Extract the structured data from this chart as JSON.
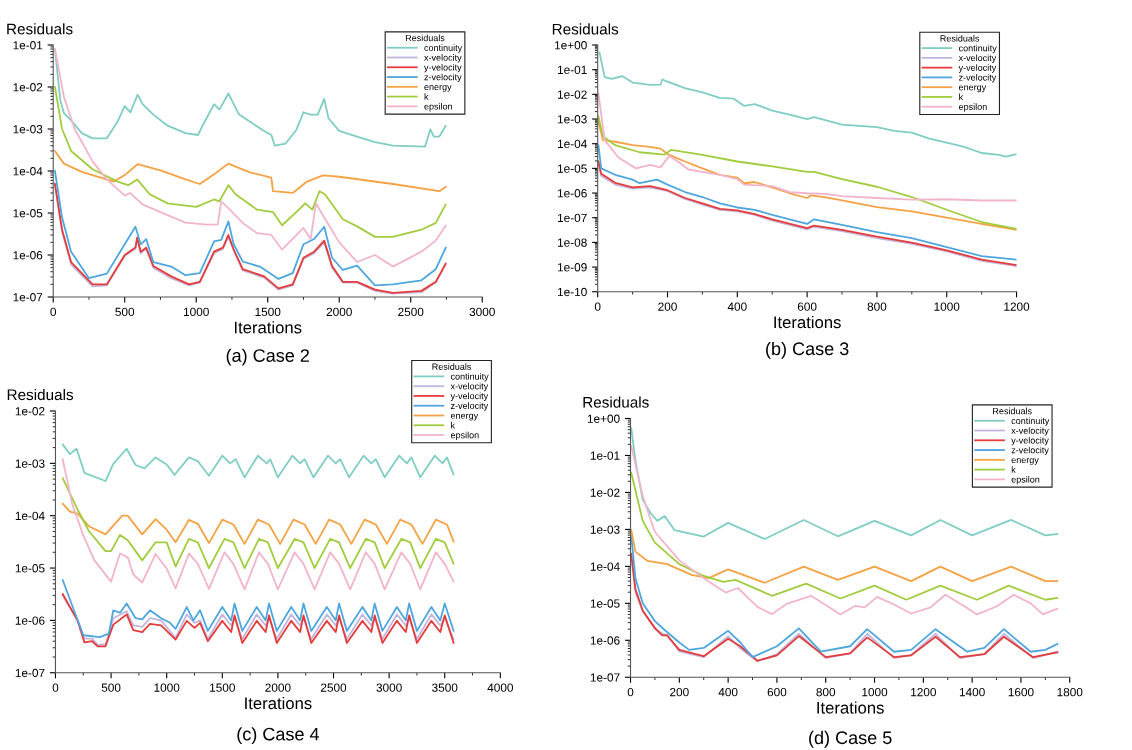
{
  "chart_data": [
    {
      "type": "line",
      "title": "(a) Case 2",
      "xlabel": "Iterations",
      "ylabel": "Residuals",
      "legend_title": "Residuals",
      "legend": "top right",
      "log": true,
      "xlim": [
        0,
        3000
      ],
      "xticks": [
        0,
        500,
        1000,
        1500,
        2000,
        2500,
        3000
      ],
      "ylim": [
        1e-07,
        0.1
      ],
      "yticks": [
        {
          "value": 1e-07,
          "label": "1e-07"
        },
        {
          "value": 1e-06,
          "label": "1e-06"
        },
        {
          "value": 1e-05,
          "label": "1e-05"
        },
        {
          "value": 0.0001,
          "label": "1e-04"
        },
        {
          "value": 0.001,
          "label": "1e-03"
        },
        {
          "value": 0.01,
          "label": "1e-02"
        },
        {
          "value": 0.1,
          "label": "1e-01"
        }
      ],
      "series": [
        {
          "name": "continuity",
          "color": "#7fcdc4",
          "x": [
            12,
            50,
            75,
            125,
            200,
            275,
            375,
            450,
            500,
            540,
            590,
            625,
            700,
            800,
            925,
            1012,
            1050,
            1125,
            1162,
            1225,
            1262,
            1300,
            1375,
            1475,
            1525,
            1550,
            1625,
            1700,
            1750,
            1800,
            1850,
            1895,
            1925,
            2000,
            2125,
            2250,
            2375,
            2600,
            2637,
            2662,
            2700,
            2745
          ],
          "values": [
            0.08,
            0.0048,
            0.0024,
            0.0016,
            0.0008,
            0.0006,
            0.0006,
            0.0015,
            0.0035,
            0.0025,
            0.0066,
            0.0039,
            0.0022,
            0.0012,
            0.0008,
            0.00072,
            0.0013,
            0.0039,
            0.0029,
            0.007,
            0.0039,
            0.0022,
            0.0015,
            0.0009,
            0.00072,
            0.0004,
            0.00045,
            0.00095,
            0.0025,
            0.0022,
            0.0022,
            0.0052,
            0.0018,
            0.0009,
            0.00066,
            0.00049,
            0.0004,
            0.00038,
            0.00098,
            0.00066,
            0.00066,
            0.0012
          ]
        },
        {
          "name": "x-velocity",
          "color": "#c3b6de",
          "x": [
            12,
            62,
            125,
            275,
            375,
            500,
            575,
            587,
            612,
            650,
            700,
            825,
            950,
            1025,
            1125,
            1187,
            1225,
            1262,
            1325,
            1475,
            1575,
            1675,
            1750,
            1825,
            1895,
            1950,
            2025,
            2125,
            2250,
            2375,
            2575,
            2675,
            2745
          ],
          "values": [
            4.5e-05,
            3.6e-06,
            6e-07,
            1.8e-07,
            1.9e-07,
            9.5e-07,
            1.4e-06,
            2.4e-06,
            1.1e-06,
            1.4e-06,
            5e-07,
            2.8e-07,
            1.9e-07,
            2.2e-07,
            1.1e-06,
            1.4e-06,
            2.7e-06,
            1.3e-06,
            4.3e-07,
            2.9e-07,
            1.5e-07,
            1.9e-07,
            8e-07,
            1.1e-06,
            2e-06,
            5e-07,
            2.2e-07,
            2.2e-07,
            1.4e-07,
            1.2e-07,
            1.3e-07,
            2.2e-07,
            6e-07
          ]
        },
        {
          "name": "y-velocity",
          "color": "#e63b3b",
          "x": [
            12,
            62,
            125,
            275,
            375,
            500,
            575,
            587,
            612,
            650,
            700,
            825,
            950,
            1025,
            1125,
            1187,
            1225,
            1262,
            1325,
            1475,
            1575,
            1675,
            1750,
            1825,
            1895,
            1950,
            2025,
            2125,
            2250,
            2375,
            2575,
            2675,
            2745
          ],
          "values": [
            5e-05,
            4e-06,
            6.8e-07,
            2e-07,
            2e-07,
            1e-06,
            1.5e-06,
            2.6e-06,
            1.2e-06,
            1.5e-06,
            5.5e-07,
            3.1e-07,
            2e-07,
            2.3e-07,
            1.2e-06,
            1.5e-06,
            3e-06,
            1.35e-06,
            4.6e-07,
            3.1e-07,
            1.6e-07,
            2e-07,
            8.6e-07,
            1.2e-06,
            2.2e-06,
            5.5e-07,
            2.3e-07,
            2.3e-07,
            1.5e-07,
            1.25e-07,
            1.4e-07,
            2.3e-07,
            6.3e-07
          ]
        },
        {
          "name": "z-velocity",
          "color": "#4da6de",
          "x": [
            12,
            62,
            125,
            250,
            375,
            500,
            575,
            612,
            650,
            700,
            825,
            925,
            1025,
            1125,
            1175,
            1225,
            1262,
            1325,
            1450,
            1575,
            1675,
            1750,
            1825,
            1895,
            1950,
            2025,
            2125,
            2250,
            2375,
            2575,
            2675,
            2745
          ],
          "values": [
            0.0001,
            7.8e-06,
            1.2e-06,
            2.8e-07,
            3.6e-07,
            1.8e-06,
            4.7e-06,
            1.8e-06,
            2.4e-06,
            6.8e-07,
            5.3e-07,
            3.3e-07,
            3.7e-07,
            2.1e-06,
            2.3e-06,
            6.3e-06,
            1.8e-06,
            7e-07,
            5.2e-07,
            2.7e-07,
            3.7e-07,
            1.8e-06,
            2.4e-06,
            4.7e-06,
            8.6e-07,
            4.4e-07,
            5.6e-07,
            1.9e-07,
            2e-07,
            2.5e-07,
            4.6e-07,
            1.5e-06
          ]
        },
        {
          "name": "energy",
          "color": "#f4a244",
          "x": [
            12,
            75,
            200,
            425,
            500,
            590,
            750,
            925,
            1025,
            1125,
            1225,
            1375,
            1525,
            1537,
            1675,
            1775,
            1887,
            2000,
            2375,
            2700,
            2745
          ],
          "values": [
            0.0003,
            0.00015,
            9.5e-05,
            5.6e-05,
            8e-05,
            0.000145,
            0.000103,
            6.3e-05,
            4.9e-05,
            8.4e-05,
            0.00015,
            9.3e-05,
            7e-05,
            3.3e-05,
            3e-05,
            5.6e-05,
            7.9e-05,
            7.3e-05,
            4.9e-05,
            3.3e-05,
            4.2e-05
          ]
        },
        {
          "name": "k",
          "color": "#a0cc3e",
          "x": [
            12,
            62,
            125,
            275,
            450,
            525,
            587,
            675,
            800,
            1000,
            1125,
            1162,
            1225,
            1275,
            1425,
            1537,
            1600,
            1700,
            1762,
            1812,
            1862,
            1900,
            2025,
            2125,
            2250,
            2375,
            2575,
            2675,
            2745
          ],
          "values": [
            0.01,
            0.001,
            0.0003,
            0.00011,
            5.6e-05,
            4.6e-05,
            6.3e-05,
            2.8e-05,
            1.7e-05,
            1.4e-05,
            2.1e-05,
            1.9e-05,
            4.6e-05,
            2.8e-05,
            1.2e-05,
            1.05e-05,
            5.1e-06,
            1.05e-05,
            1.7e-05,
            1.2e-05,
            3.3e-05,
            2.8e-05,
            7.1e-06,
            4.8e-06,
            2.7e-06,
            2.7e-06,
            4e-06,
            5.8e-06,
            1.6e-05
          ]
        },
        {
          "name": "epsilon",
          "color": "#f2b4cb",
          "x": [
            12,
            75,
            150,
            275,
            375,
            500,
            537,
            625,
            750,
            925,
            1075,
            1150,
            1175,
            1225,
            1325,
            1425,
            1525,
            1600,
            1750,
            1800,
            1837,
            1887,
            2000,
            2125,
            2250,
            2375,
            2575,
            2675,
            2745
          ],
          "values": [
            0.08,
            0.0058,
            0.001,
            0.00017,
            6.3e-05,
            2.6e-05,
            3e-05,
            1.6e-05,
            1.05e-05,
            5.9e-06,
            5.3e-06,
            5.3e-06,
            1.9e-05,
            1.3e-05,
            5.8e-06,
            3.3e-06,
            3e-06,
            1.35e-06,
            4.4e-06,
            2.4e-06,
            1.7e-05,
            8.7e-06,
            2e-06,
            6.8e-07,
            1e-06,
            5.3e-07,
            1.2e-06,
            2.2e-06,
            5e-06
          ]
        }
      ]
    },
    {
      "type": "line",
      "title": "(b) Case 3",
      "xlabel": "Iterations",
      "ylabel": "Residuals",
      "legend_title": "Residuals",
      "legend": "top right",
      "log": true,
      "xlim": [
        0,
        1200
      ],
      "xticks": [
        0,
        200,
        400,
        600,
        800,
        1000,
        1200
      ],
      "ylim": [
        1e-10,
        1
      ],
      "yticks": [
        {
          "value": 1e-10,
          "label": "1e-10"
        },
        {
          "value": 1e-09,
          "label": "1e-09"
        },
        {
          "value": 1e-08,
          "label": "1e-08"
        },
        {
          "value": 1e-07,
          "label": "1e-07"
        },
        {
          "value": 1e-06,
          "label": "1e-06"
        },
        {
          "value": 1e-05,
          "label": "1e-05"
        },
        {
          "value": 0.0001,
          "label": "1e-04"
        },
        {
          "value": 0.001,
          "label": "1e-03"
        },
        {
          "value": 0.01,
          "label": "1e-02"
        },
        {
          "value": 0.1,
          "label": "1e-01"
        },
        {
          "value": 1,
          "label": "1e+00"
        }
      ],
      "series": [
        {
          "name": "continuity",
          "color": "#7fcdc4",
          "x": [
            5,
            20,
            40,
            70,
            100,
            150,
            180,
            185,
            200,
            250,
            300,
            350,
            390,
            420,
            450,
            500,
            550,
            600,
            620,
            700,
            800,
            850,
            900,
            950,
            1000,
            1050,
            1100,
            1150,
            1170,
            1200
          ],
          "values": [
            0.5,
            0.05,
            0.042,
            0.055,
            0.03,
            0.024,
            0.025,
            0.04,
            0.033,
            0.018,
            0.012,
            0.0072,
            0.0067,
            0.0034,
            0.004,
            0.0022,
            0.0015,
            0.001,
            0.0012,
            0.00059,
            0.00047,
            0.00033,
            0.00028,
            0.00016,
            0.00011,
            7.4e-05,
            4.2e-05,
            3.5e-05,
            3e-05,
            3.8e-05
          ]
        },
        {
          "name": "x-velocity",
          "color": "#c3b6de",
          "x": [
            2,
            10,
            50,
            100,
            150,
            200,
            250,
            300,
            350,
            400,
            450,
            500,
            600,
            620,
            700,
            800,
            900,
            1000,
            1100,
            1200
          ],
          "values": [
            1.6e-05,
            5e-06,
            2.2e-06,
            1.5e-06,
            1.7e-06,
            1.2e-06,
            5.8e-07,
            3.4e-07,
            2.1e-07,
            1.8e-07,
            1.3e-07,
            7.6e-08,
            3.4e-08,
            4.3e-08,
            2.9e-08,
            1.5e-08,
            8.8e-09,
            4.3e-09,
            1.8e-09,
            1.1e-09
          ]
        },
        {
          "name": "y-velocity",
          "color": "#e63b3b",
          "x": [
            2,
            10,
            50,
            100,
            150,
            200,
            250,
            300,
            350,
            400,
            450,
            500,
            600,
            620,
            700,
            800,
            900,
            1000,
            1100,
            1200
          ],
          "values": [
            1.9e-05,
            6e-06,
            2.6e-06,
            1.7e-06,
            1.9e-06,
            1.3e-06,
            6.3e-07,
            3.8e-07,
            2.3e-07,
            2e-07,
            1.4e-07,
            8.6e-08,
            3.8e-08,
            4.8e-08,
            3.2e-08,
            1.7e-08,
            9.8e-09,
            4.8e-09,
            2e-09,
            1.2e-09
          ]
        },
        {
          "name": "z-velocity",
          "color": "#4da6de",
          "x": [
            2,
            10,
            50,
            100,
            120,
            170,
            200,
            250,
            300,
            350,
            400,
            450,
            500,
            600,
            620,
            700,
            800,
            900,
            1000,
            1100,
            1200
          ],
          "values": [
            8.7e-05,
            1e-05,
            5.5e-06,
            3.5e-06,
            2.5e-06,
            3.5e-06,
            2.2e-06,
            1.1e-06,
            6.9e-07,
            3.8e-07,
            2.6e-07,
            2.1e-07,
            1.3e-07,
            5.6e-08,
            8.6e-08,
            5.1e-08,
            2.6e-08,
            1.5e-08,
            6.5e-09,
            2.8e-09,
            2e-09
          ]
        },
        {
          "name": "energy",
          "color": "#f4a244",
          "x": [
            2,
            15,
            50,
            100,
            150,
            180,
            200,
            250,
            300,
            350,
            400,
            420,
            450,
            500,
            550,
            600,
            610,
            650,
            700,
            800,
            900,
            1000,
            1100,
            1200
          ],
          "values": [
            0.0008,
            0.00014,
            0.00012,
            8.7e-05,
            7.4e-05,
            6.3e-05,
            3.8e-05,
            1.9e-05,
            1e-05,
            5.5e-06,
            4.2e-06,
            2.5e-06,
            2.8e-06,
            1.7e-06,
            9.8e-07,
            6.3e-07,
            8e-07,
            6.9e-07,
            5e-07,
            2.7e-07,
            1.8e-07,
            1e-07,
            5.6e-08,
            3.2e-08
          ]
        },
        {
          "name": "k",
          "color": "#a0cc3e",
          "x": [
            2,
            15,
            50,
            120,
            190,
            210,
            300,
            400,
            500,
            600,
            620,
            700,
            800,
            900,
            1000,
            1100,
            1200
          ],
          "values": [
            0.0013,
            0.0002,
            8.7e-05,
            4.5e-05,
            3.6e-05,
            5.6e-05,
            3.5e-05,
            1.9e-05,
            1.2e-05,
            7.2e-06,
            7.2e-06,
            3.7e-06,
            1.8e-06,
            6.9e-07,
            2.1e-07,
            6.7e-08,
            3.5e-08
          ]
        },
        {
          "name": "epsilon",
          "color": "#f2b4cb",
          "x": [
            2,
            20,
            60,
            110,
            150,
            180,
            205,
            230,
            260,
            300,
            350,
            400,
            420,
            500,
            550,
            600,
            650,
            700,
            800,
            900,
            1000,
            1100,
            1200
          ],
          "values": [
            0.011,
            0.00014,
            2.7e-05,
            1e-05,
            1.4e-05,
            1.1e-05,
            3.2e-05,
            1.9e-05,
            9e-06,
            7.2e-06,
            5.5e-06,
            3.7e-06,
            2.2e-06,
            1.9e-06,
            1.1e-06,
            9.8e-07,
            9.2e-07,
            7.5e-07,
            6.3e-07,
            5.4e-07,
            5.6e-07,
            5e-07,
            5e-07
          ]
        }
      ]
    },
    {
      "type": "line",
      "title": "(c) Case 4",
      "xlabel": "Iterations",
      "ylabel": "Residuals",
      "legend_title": "Residuals",
      "legend": "top right",
      "log": true,
      "xlim": [
        0,
        4000
      ],
      "xticks": [
        0,
        500,
        1000,
        1500,
        2000,
        2500,
        3000,
        3500,
        4000
      ],
      "ylim": [
        1e-07,
        0.01
      ],
      "yticks": [
        {
          "value": 1e-07,
          "label": "1e-07"
        },
        {
          "value": 1e-06,
          "label": "1e-06"
        },
        {
          "value": 1e-05,
          "label": "1e-05"
        },
        {
          "value": 0.0001,
          "label": "1e-04"
        },
        {
          "value": 0.001,
          "label": "1e-03"
        },
        {
          "value": 0.01,
          "label": "1e-02"
        }
      ],
      "series": [
        {
          "name": "continuity",
          "color": "#7fcdc4",
          "x": [
            65,
            130,
            190,
            260,
            450,
            520,
            640,
            720,
            800,
            900,
            1000,
            1070,
            1200,
            1280,
            1380,
            1500,
            1570,
            1620,
            1700,
            1820,
            1900,
            1930,
            2000,
            2130,
            2200,
            2240,
            2320,
            2450,
            2520,
            2560,
            2640,
            2770,
            2840,
            2880,
            2960,
            3090,
            3160,
            3200,
            3280,
            3410,
            3480,
            3520,
            3580
          ],
          "values": [
            0.0023,
            0.0015,
            0.0019,
            0.00066,
            0.00046,
            0.00098,
            0.0019,
            0.00093,
            0.0008,
            0.0013,
            0.00095,
            0.0006,
            0.0013,
            0.0011,
            0.00058,
            0.0014,
            0.001,
            0.0012,
            0.00054,
            0.0014,
            0.001,
            0.0012,
            0.00054,
            0.0014,
            0.001,
            0.0012,
            0.00054,
            0.0014,
            0.001,
            0.0012,
            0.00054,
            0.0014,
            0.001,
            0.0012,
            0.00054,
            0.0014,
            0.001,
            0.0013,
            0.00054,
            0.0014,
            0.001,
            0.0013,
            0.00061
          ]
        },
        {
          "name": "x-velocity",
          "color": "#c3b6de",
          "x": [
            65,
            200,
            260,
            330,
            380,
            450,
            520,
            640,
            700,
            780,
            850,
            950,
            1080,
            1180,
            1250,
            1300,
            1370,
            1500,
            1580,
            1610,
            1680,
            1810,
            1890,
            1920,
            1990,
            2120,
            2200,
            2230,
            2300,
            2440,
            2520,
            2550,
            2620,
            2760,
            2840,
            2870,
            2940,
            3070,
            3150,
            3180,
            3250,
            3380,
            3460,
            3500,
            3580
          ],
          "values": [
            3e-06,
            1e-06,
            4.5e-07,
            4.5e-07,
            3.4e-07,
            3.5e-07,
            1.1e-06,
            1.5e-06,
            8e-07,
            7.5e-07,
            1.1e-06,
            1e-06,
            4.6e-07,
            1.3e-06,
            9e-07,
            1e-06,
            4.4e-07,
            1.3e-06,
            8e-07,
            1.1e-06,
            4.4e-07,
            1.3e-06,
            8e-07,
            1.1e-06,
            4.4e-07,
            1.3e-06,
            8e-07,
            1.1e-06,
            4.4e-07,
            1.3e-06,
            8e-07,
            1.1e-06,
            4.4e-07,
            1.3e-06,
            8e-07,
            1.1e-06,
            4.4e-07,
            1.3e-06,
            8e-07,
            1.1e-06,
            4.4e-07,
            1.3e-06,
            8e-07,
            1.1e-06,
            4.4e-07
          ]
        },
        {
          "name": "y-velocity",
          "color": "#e63b3b",
          "x": [
            65,
            200,
            260,
            330,
            380,
            450,
            520,
            640,
            700,
            780,
            850,
            950,
            1080,
            1180,
            1250,
            1300,
            1370,
            1500,
            1580,
            1610,
            1680,
            1810,
            1890,
            1920,
            1990,
            2120,
            2200,
            2230,
            2300,
            2440,
            2520,
            2550,
            2620,
            2760,
            2840,
            2870,
            2940,
            3070,
            3150,
            3180,
            3250,
            3380,
            3460,
            3500,
            3580
          ],
          "values": [
            3.2e-06,
            9.8e-07,
            3.8e-07,
            4e-07,
            3.2e-07,
            3.2e-07,
            8.3e-07,
            1.3e-06,
            6.5e-07,
            6e-07,
            8.6e-07,
            8e-07,
            4.3e-07,
            9.8e-07,
            7.2e-07,
            9e-07,
            4e-07,
            9.8e-07,
            6e-07,
            1.25e-06,
            3.7e-07,
            9.8e-07,
            6e-07,
            1.25e-06,
            3.7e-07,
            9.8e-07,
            6e-07,
            1.25e-06,
            3.7e-07,
            9.8e-07,
            6e-07,
            1.25e-06,
            3.7e-07,
            9.8e-07,
            6e-07,
            1.25e-06,
            3.7e-07,
            9.8e-07,
            6e-07,
            1.25e-06,
            3.7e-07,
            9.8e-07,
            6e-07,
            1.25e-06,
            3.7e-07
          ]
        },
        {
          "name": "z-velocity",
          "color": "#4da6de",
          "x": [
            65,
            250,
            400,
            480,
            520,
            580,
            640,
            720,
            780,
            850,
            950,
            1030,
            1080,
            1180,
            1240,
            1300,
            1370,
            1500,
            1580,
            1610,
            1680,
            1810,
            1890,
            1920,
            1990,
            2120,
            2200,
            2230,
            2300,
            2440,
            2520,
            2550,
            2620,
            2760,
            2840,
            2870,
            2940,
            3070,
            3150,
            3180,
            3250,
            3380,
            3460,
            3500,
            3580
          ],
          "values": [
            5.9e-06,
            5.2e-07,
            4.8e-07,
            5.6e-07,
            1.56e-06,
            1.4e-06,
            2.1e-06,
            1.1e-06,
            1.05e-06,
            1.56e-06,
            1.1e-06,
            9e-07,
            6.9e-07,
            1.8e-06,
            1e-06,
            1.56e-06,
            6.3e-07,
            1.8e-06,
            1e-06,
            2.1e-06,
            6.3e-07,
            1.8e-06,
            1e-06,
            2.1e-06,
            6.3e-07,
            1.8e-06,
            1e-06,
            2.1e-06,
            6.3e-07,
            1.8e-06,
            1e-06,
            2.1e-06,
            6.3e-07,
            1.8e-06,
            1e-06,
            2.1e-06,
            6.3e-07,
            1.8e-06,
            1e-06,
            2.1e-06,
            6.3e-07,
            1.8e-06,
            1e-06,
            2.1e-06,
            6.3e-07
          ]
        },
        {
          "name": "energy",
          "color": "#f4a244",
          "x": [
            65,
            130,
            200,
            300,
            450,
            600,
            650,
            780,
            900,
            1000,
            1080,
            1200,
            1280,
            1380,
            1500,
            1600,
            1700,
            1820,
            1920,
            2020,
            2140,
            2240,
            2340,
            2460,
            2560,
            2660,
            2780,
            2880,
            2980,
            3100,
            3200,
            3300,
            3420,
            3520,
            3580
          ],
          "values": [
            0.00017,
            0.00012,
            0.00011,
            6.3e-05,
            4.4e-05,
            0.0001,
            0.0001,
            4.4e-05,
            8.6e-05,
            5.4e-05,
            3.1e-05,
            8.3e-05,
            7e-05,
            3e-05,
            8.4e-05,
            6.8e-05,
            2.9e-05,
            8.4e-05,
            6.8e-05,
            2.9e-05,
            8.4e-05,
            6.8e-05,
            2.9e-05,
            8.4e-05,
            6.8e-05,
            2.9e-05,
            8.4e-05,
            6.8e-05,
            2.9e-05,
            8.4e-05,
            6.8e-05,
            2.9e-05,
            8.4e-05,
            6.8e-05,
            3.2e-05
          ]
        },
        {
          "name": "k",
          "color": "#a0cc3e",
          "x": [
            65,
            200,
            300,
            450,
            500,
            580,
            650,
            780,
            900,
            1000,
            1080,
            1200,
            1280,
            1380,
            1520,
            1600,
            1700,
            1830,
            1910,
            2000,
            2150,
            2230,
            2330,
            2470,
            2550,
            2650,
            2790,
            2870,
            2960,
            3110,
            3190,
            3280,
            3420,
            3500,
            3580
          ],
          "values": [
            0.00052,
            0.00013,
            5.1e-05,
            2.1e-05,
            2.1e-05,
            4.3e-05,
            3.4e-05,
            1.4e-05,
            3.1e-05,
            3.1e-05,
            1.07e-05,
            3.6e-05,
            3.1e-05,
            1e-05,
            3.6e-05,
            3.1e-05,
            1e-05,
            3.6e-05,
            3.1e-05,
            1e-05,
            3.6e-05,
            3.1e-05,
            1e-05,
            3.6e-05,
            3.1e-05,
            1e-05,
            3.6e-05,
            3.1e-05,
            1e-05,
            3.6e-05,
            3.1e-05,
            1e-05,
            3.6e-05,
            3.1e-05,
            1.2e-05
          ]
        },
        {
          "name": "epsilon",
          "color": "#f2b4cb",
          "x": [
            65,
            150,
            250,
            350,
            500,
            580,
            650,
            700,
            780,
            900,
            1000,
            1080,
            1200,
            1280,
            1380,
            1520,
            1600,
            1700,
            1830,
            1910,
            2000,
            2150,
            2230,
            2330,
            2470,
            2550,
            2650,
            2790,
            2870,
            2960,
            3110,
            3190,
            3280,
            3420,
            3500,
            3580
          ],
          "values": [
            0.0012,
            0.00017,
            4.2e-05,
            1.4e-05,
            5.5e-06,
            1.9e-05,
            1.6e-05,
            7.5e-06,
            5.3e-06,
            1.85e-05,
            9.8e-06,
            4.1e-06,
            1.9e-05,
            1.2e-05,
            4e-06,
            2e-05,
            1.2e-05,
            3.9e-06,
            2e-05,
            1.2e-05,
            3.9e-06,
            2e-05,
            1.2e-05,
            3.9e-06,
            2e-05,
            1.2e-05,
            3.9e-06,
            2e-05,
            1.2e-05,
            3.9e-06,
            2e-05,
            1.2e-05,
            3.9e-06,
            2e-05,
            1.2e-05,
            5.5e-06
          ]
        }
      ]
    },
    {
      "type": "line",
      "title": "(d) Case 5",
      "xlabel": "Iterations",
      "ylabel": "Residuals",
      "legend_title": "Residuals",
      "legend": "top right",
      "log": true,
      "xlim": [
        0,
        1800
      ],
      "xticks": [
        0,
        200,
        400,
        600,
        800,
        1000,
        1200,
        1400,
        1600,
        1800
      ],
      "ylim": [
        1e-07,
        1
      ],
      "yticks": [
        {
          "value": 1e-07,
          "label": "1e-07"
        },
        {
          "value": 1e-06,
          "label": "1e-06"
        },
        {
          "value": 1e-05,
          "label": "1e-05"
        },
        {
          "value": 0.0001,
          "label": "1e-04"
        },
        {
          "value": 0.001,
          "label": "1e-03"
        },
        {
          "value": 0.01,
          "label": "1e-02"
        },
        {
          "value": 0.1,
          "label": "1e-01"
        },
        {
          "value": 1,
          "label": "1e+00"
        }
      ],
      "series": [
        {
          "name": "continuity",
          "color": "#7fcdc4",
          "x": [
            3,
            20,
            50,
            80,
            110,
            140,
            180,
            300,
            400,
            550,
            710,
            850,
            1000,
            1150,
            1270,
            1400,
            1560,
            1700,
            1750
          ],
          "values": [
            0.55,
            0.074,
            0.0063,
            0.0029,
            0.0017,
            0.0023,
            0.00096,
            0.00064,
            0.0015,
            0.00055,
            0.0018,
            0.00065,
            0.0017,
            0.00069,
            0.0018,
            0.00069,
            0.0018,
            0.00069,
            0.00075
          ]
        },
        {
          "name": "x-velocity",
          "color": "#c3b6de",
          "x": [
            3,
            20,
            50,
            100,
            130,
            150,
            200,
            300,
            400,
            450,
            520,
            600,
            690,
            800,
            900,
            970,
            1080,
            1150,
            1250,
            1350,
            1450,
            1530,
            1650,
            1750
          ],
          "values": [
            0.0002,
            2e-05,
            6e-06,
            2.2e-06,
            1.5e-06,
            1.4e-06,
            5e-07,
            3.5e-07,
            1.3e-06,
            6e-07,
            2.7e-07,
            4.2e-07,
            1.5e-06,
            3.3e-07,
            4.4e-07,
            1.5e-06,
            3.3e-07,
            4e-07,
            1.5e-06,
            3.3e-07,
            4.2e-07,
            1.5e-06,
            3.3e-07,
            5e-07
          ]
        },
        {
          "name": "y-velocity",
          "color": "#e63b3b",
          "x": [
            3,
            20,
            50,
            100,
            130,
            150,
            200,
            300,
            400,
            450,
            520,
            600,
            690,
            800,
            900,
            970,
            1080,
            1150,
            1250,
            1350,
            1450,
            1530,
            1650,
            1750
          ],
          "values": [
            0.00022,
            2.4e-05,
            6.4e-06,
            2.1e-06,
            1.35e-06,
            1.35e-06,
            5.5e-07,
            3.7e-07,
            1.1e-06,
            6.9e-07,
            2.8e-07,
            3.9e-07,
            1.3e-06,
            3.5e-07,
            4.4e-07,
            1.2e-06,
            3.5e-07,
            3.9e-07,
            1.25e-06,
            3.5e-07,
            4.2e-07,
            1.25e-06,
            3.5e-07,
            4.7e-07
          ]
        },
        {
          "name": "z-velocity",
          "color": "#4da6de",
          "x": [
            3,
            20,
            50,
            100,
            140,
            200,
            240,
            300,
            400,
            450,
            500,
            600,
            690,
            780,
            900,
            970,
            1080,
            1150,
            1250,
            1380,
            1450,
            1530,
            1640,
            1700,
            1750
          ],
          "values": [
            0.00069,
            4.8e-05,
            1e-05,
            3.3e-06,
            1.9e-06,
            8.7e-07,
            5.5e-07,
            6.2e-07,
            1.8e-06,
            8.7e-07,
            3.5e-07,
            6.9e-07,
            2.1e-06,
            4.9e-07,
            6.9e-07,
            2e-06,
            4.9e-07,
            5.5e-07,
            2e-06,
            4.9e-07,
            6.2e-07,
            2e-06,
            4.9e-07,
            5.5e-07,
            8e-07
          ]
        },
        {
          "name": "energy",
          "color": "#f4a244",
          "x": [
            3,
            20,
            70,
            150,
            250,
            320,
            400,
            550,
            710,
            850,
            1000,
            1150,
            1270,
            1400,
            1560,
            1700,
            1750
          ],
          "values": [
            0.00096,
            0.00025,
            0.00014,
            0.000115,
            5.9e-05,
            4.8e-05,
            8.3e-05,
            3.6e-05,
            9.8e-05,
            4.3e-05,
            9.8e-05,
            4e-05,
            9.8e-05,
            4e-05,
            9.8e-05,
            4e-05,
            4e-05
          ]
        },
        {
          "name": "k",
          "color": "#a0cc3e",
          "x": [
            3,
            50,
            100,
            200,
            300,
            380,
            430,
            580,
            720,
            860,
            1000,
            1130,
            1270,
            1420,
            1550,
            1700,
            1750
          ],
          "values": [
            0.034,
            0.0017,
            0.00044,
            0.000115,
            5.5e-05,
            3.8e-05,
            4.3e-05,
            1.6e-05,
            3.4e-05,
            1.35e-05,
            3e-05,
            1.25e-05,
            3e-05,
            1.25e-05,
            3e-05,
            1.25e-05,
            1.4e-05
          ]
        },
        {
          "name": "epsilon",
          "color": "#f2b4cb",
          "x": [
            3,
            50,
            100,
            200,
            300,
            390,
            440,
            520,
            580,
            640,
            740,
            800,
            860,
            920,
            960,
            1010,
            1080,
            1150,
            1230,
            1290,
            1360,
            1420,
            1500,
            1570,
            1640,
            1690,
            1750
          ],
          "values": [
            0.18,
            0.008,
            0.00085,
            0.000145,
            4.8e-05,
            1.95e-05,
            2.6e-05,
            8e-06,
            5.1e-06,
            9.7e-06,
            1.6e-05,
            9e-06,
            5e-06,
            8.5e-06,
            7.8e-06,
            1.5e-05,
            9.3e-06,
            5.3e-06,
            7.8e-06,
            1.7e-05,
            9e-06,
            5e-06,
            8.2e-06,
            1.7e-05,
            1e-05,
            5e-06,
            7.2e-06
          ]
        }
      ]
    }
  ]
}
